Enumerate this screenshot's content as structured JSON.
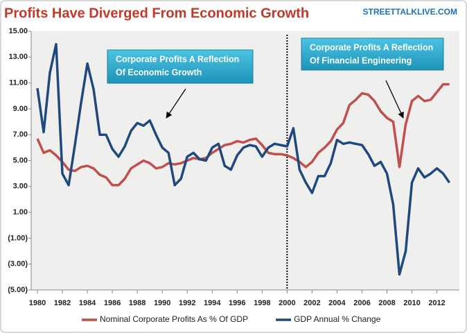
{
  "chart_data": {
    "type": "line",
    "title": "Profits Have Diverged From Economic Growth",
    "source": "STREETTALKLIVE.COM",
    "x": [
      1980,
      1980.5,
      1981,
      1981.5,
      1982,
      1982.5,
      1983,
      1983.5,
      1984,
      1984.5,
      1985,
      1985.5,
      1986,
      1986.5,
      1987,
      1987.5,
      1988,
      1988.5,
      1989,
      1989.5,
      1990,
      1990.5,
      1991,
      1991.5,
      1992,
      1992.5,
      1993,
      1993.5,
      1994,
      1994.5,
      1995,
      1995.5,
      1996,
      1996.5,
      1997,
      1997.5,
      1998,
      1998.5,
      1999,
      1999.5,
      2000,
      2000.5,
      2001,
      2001.5,
      2002,
      2002.5,
      2003,
      2003.5,
      2004,
      2004.5,
      2005,
      2005.5,
      2006,
      2006.5,
      2007,
      2007.5,
      2008,
      2008.5,
      2009,
      2009.5,
      2010,
      2010.5,
      2011,
      2011.5,
      2012,
      2012.5,
      2013
    ],
    "series": [
      {
        "name": "Nominal Corporate Profits As % Of GDP",
        "color": "#c0504d",
        "values": [
          6.7,
          5.6,
          5.8,
          5.4,
          4.9,
          4.3,
          4.2,
          4.5,
          4.6,
          4.4,
          3.9,
          3.7,
          3.1,
          3.1,
          3.6,
          4.4,
          4.7,
          5.0,
          4.8,
          4.4,
          4.5,
          4.8,
          4.7,
          4.8,
          5.0,
          5.2,
          5.1,
          5.2,
          5.6,
          5.9,
          6.2,
          6.3,
          6.5,
          6.4,
          6.6,
          6.7,
          6.2,
          5.6,
          5.5,
          5.5,
          5.4,
          5.2,
          4.9,
          4.5,
          4.9,
          5.6,
          6.0,
          6.5,
          7.4,
          7.9,
          9.3,
          9.7,
          10.2,
          10.1,
          9.6,
          8.8,
          8.3,
          8.0,
          4.5,
          7.8,
          9.6,
          10.0,
          9.6,
          9.7,
          10.3,
          10.9,
          10.9
        ]
      },
      {
        "name": "GDP Annual % Change",
        "color": "#1f497d",
        "values": [
          10.6,
          7.2,
          11.8,
          14.0,
          4.0,
          3.1,
          6.2,
          9.5,
          12.5,
          10.5,
          7.0,
          7.0,
          5.9,
          5.3,
          6.1,
          7.3,
          7.9,
          7.7,
          8.1,
          7.0,
          6.0,
          5.6,
          3.1,
          3.6,
          5.3,
          5.6,
          5.1,
          5.0,
          6.0,
          6.3,
          4.6,
          4.3,
          5.4,
          6.0,
          6.2,
          6.1,
          5.3,
          6.0,
          6.3,
          6.2,
          6.1,
          7.5,
          4.3,
          3.3,
          2.5,
          3.8,
          3.8,
          4.8,
          6.6,
          6.3,
          6.4,
          6.3,
          6.2,
          5.5,
          4.6,
          4.9,
          4.0,
          1.6,
          -3.8,
          -2.0,
          3.3,
          4.4,
          3.7,
          4.0,
          4.4,
          4.0,
          3.3
        ]
      }
    ],
    "xlim": [
      1979.5,
      2013.8
    ],
    "xticks": [
      1980,
      1982,
      1984,
      1986,
      1988,
      1990,
      1992,
      1994,
      1996,
      1998,
      2000,
      2002,
      2004,
      2006,
      2008,
      2010,
      2012
    ],
    "ylim": [
      -5,
      15
    ],
    "yticks": [
      {
        "value": 15,
        "label": "15.00"
      },
      {
        "value": 13,
        "label": "13.00"
      },
      {
        "value": 11,
        "label": "11.00"
      },
      {
        "value": 9,
        "label": "9.00"
      },
      {
        "value": 7,
        "label": "7.00"
      },
      {
        "value": 5,
        "label": "5.00"
      },
      {
        "value": 3,
        "label": "3.00"
      },
      {
        "value": 1,
        "label": "1.00"
      },
      {
        "value": -1,
        "label": "(1.00)"
      },
      {
        "value": -3,
        "label": "(3.00)"
      },
      {
        "value": -5,
        "label": "(5.00)"
      }
    ],
    "vline": 2000,
    "annotations": [
      {
        "lines": [
          "Corporate Profits A Reflection",
          "Of Economic Growth"
        ]
      },
      {
        "lines": [
          "Corporate Profits A Reflection",
          "Of Financial Engineering"
        ]
      }
    ],
    "legend": "bottom"
  }
}
